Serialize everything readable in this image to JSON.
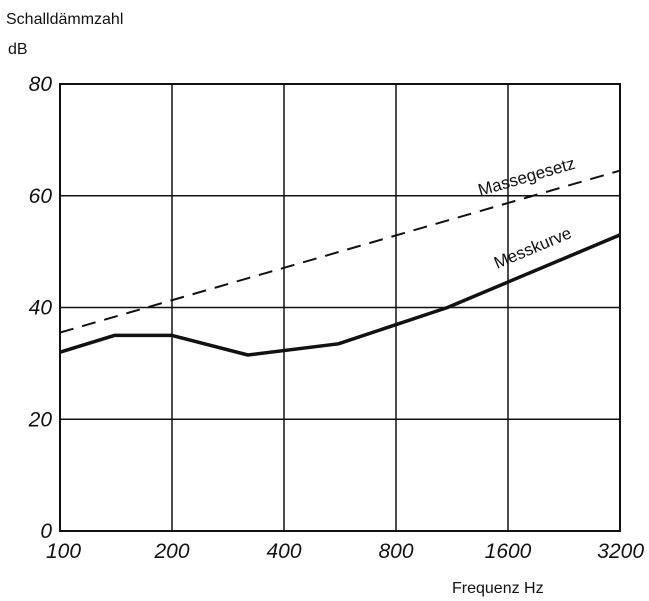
{
  "chart_data": {
    "type": "line",
    "ylabel": "Schalldämmzahl",
    "yunit": "dB",
    "xlabel": "Frequenz Hz",
    "xscale": "log",
    "x_ticks": [
      100,
      200,
      400,
      800,
      1600,
      3200
    ],
    "x_tick_labels": [
      "100",
      "200",
      "400",
      "800",
      "1600",
      "3200"
    ],
    "xlim": [
      100,
      3200
    ],
    "y_ticks": [
      0,
      20,
      40,
      60,
      80
    ],
    "y_tick_labels": [
      "0",
      "20",
      "40",
      "60",
      "80"
    ],
    "ylim": [
      0,
      80
    ],
    "grid": true,
    "series": [
      {
        "name": "Massegesetz",
        "style": "dashed",
        "color": "#111111",
        "x": [
          100,
          3200
        ],
        "y": [
          35.5,
          64.5
        ]
      },
      {
        "name": "Messkurve",
        "style": "solid",
        "color": "#111111",
        "x": [
          100,
          140,
          200,
          320,
          560,
          1100,
          3200
        ],
        "y": [
          32,
          35,
          35,
          31.5,
          33.5,
          40,
          53
        ]
      }
    ]
  }
}
